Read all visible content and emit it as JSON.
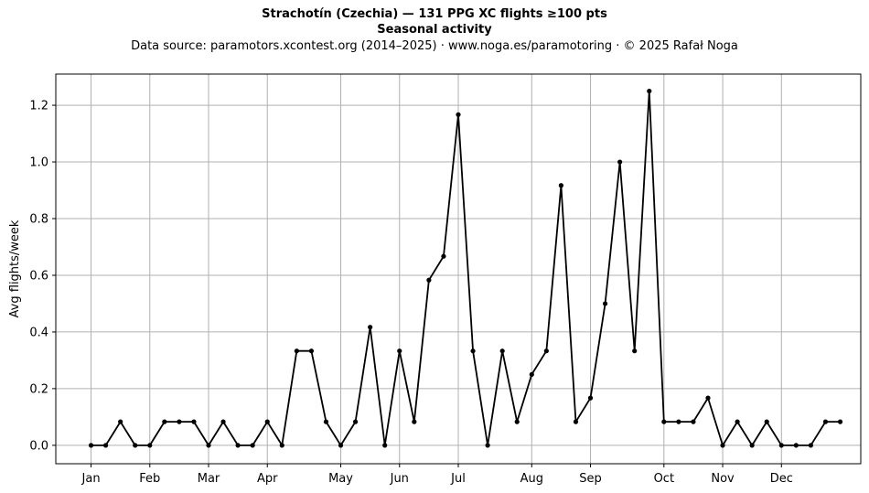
{
  "header": {
    "title": "Strachotín (Czechia)  —  131 PPG XC flights ≥100 pts",
    "subtitle": "Seasonal activity",
    "source": "Data source: paramotors.xcontest.org (2014–2025)  ·  www.noga.es/paramotoring  ·  © 2025 Rafał Noga"
  },
  "chart_data": {
    "type": "line",
    "title": "Strachotín (Czechia)  —  131 PPG XC flights ≥100 pts",
    "subtitle": "Seasonal activity",
    "xlabel": "",
    "ylabel": "Avg flights/week",
    "x_unit": "week of year",
    "xlim": [
      -1.4,
      53.4
    ],
    "ylim": [
      -0.065,
      1.31
    ],
    "yticks": [
      0.0,
      0.2,
      0.4,
      0.6,
      0.8,
      1.0,
      1.2
    ],
    "ytick_labels": [
      "0.0",
      "0.2",
      "0.4",
      "0.6",
      "0.8",
      "1.0",
      "1.2"
    ],
    "month_ticks": [
      {
        "label": "Jan",
        "week": 1
      },
      {
        "label": "Feb",
        "week": 5
      },
      {
        "label": "Mar",
        "week": 9
      },
      {
        "label": "Apr",
        "week": 13
      },
      {
        "label": "May",
        "week": 18
      },
      {
        "label": "Jun",
        "week": 22
      },
      {
        "label": "Jul",
        "week": 26
      },
      {
        "label": "Aug",
        "week": 31
      },
      {
        "label": "Sep",
        "week": 35
      },
      {
        "label": "Oct",
        "week": 40
      },
      {
        "label": "Nov",
        "week": 44
      },
      {
        "label": "Dec",
        "week": 48
      }
    ],
    "grid": true,
    "legend": false,
    "line_color": "#000000",
    "x": [
      1,
      2,
      3,
      4,
      5,
      6,
      7,
      8,
      9,
      10,
      11,
      12,
      13,
      14,
      15,
      16,
      17,
      18,
      19,
      20,
      21,
      22,
      23,
      24,
      25,
      26,
      27,
      28,
      29,
      30,
      31,
      32,
      33,
      34,
      35,
      36,
      37,
      38,
      39,
      40,
      41,
      42,
      43,
      44,
      45,
      46,
      47,
      48,
      49,
      50,
      51,
      52
    ],
    "series": [
      {
        "values": [
          0.0,
          0.0,
          0.083,
          0.0,
          0.0,
          0.083,
          0.083,
          0.083,
          0.0,
          0.083,
          0.0,
          0.0,
          0.083,
          0.0,
          0.333,
          0.333,
          0.083,
          0.0,
          0.083,
          0.417,
          0.0,
          0.333,
          0.083,
          0.583,
          0.667,
          1.167,
          0.333,
          0.0,
          0.333,
          0.083,
          0.25,
          0.333,
          0.917,
          0.083,
          0.167,
          0.5,
          1.0,
          0.333,
          1.25,
          0.083,
          0.083,
          0.083,
          0.167,
          0.0,
          0.083,
          0.0,
          0.083,
          0.0,
          0.0,
          0.0,
          0.083,
          0.083
        ]
      }
    ]
  }
}
